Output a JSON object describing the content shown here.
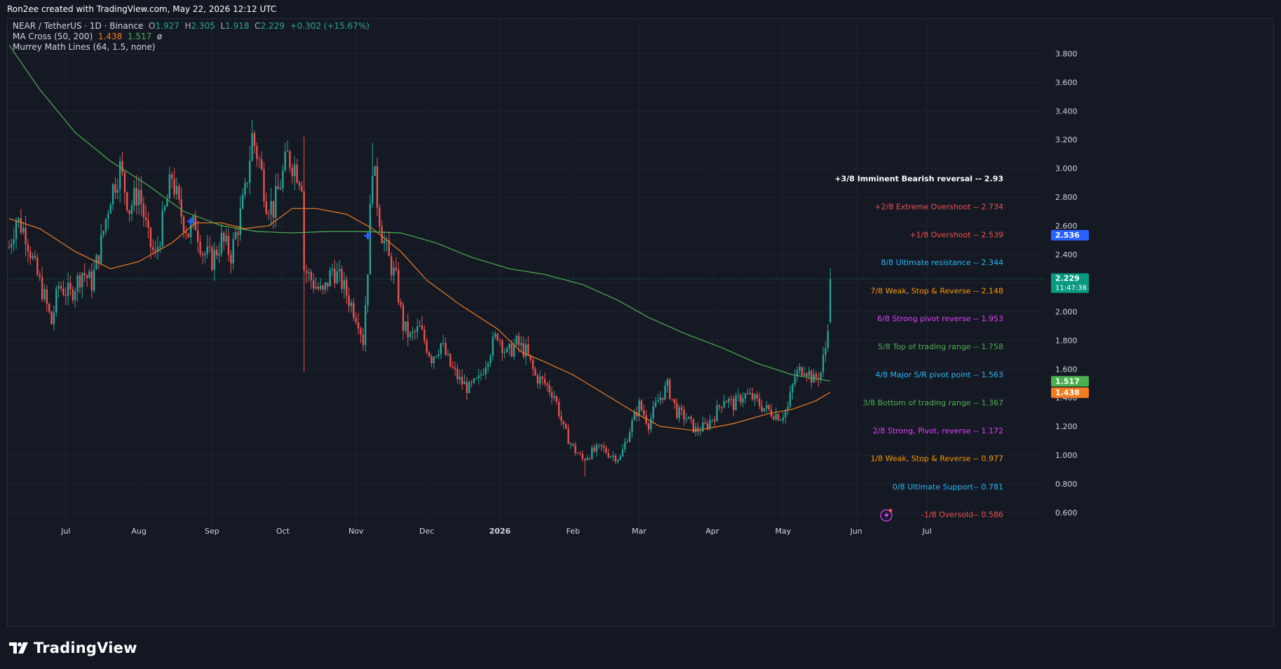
{
  "header": {
    "attribution": "Ron2ee created with TradingView.com, May 22, 2026 12:12 UTC"
  },
  "legend": {
    "symbol": "NEAR / TetherUS · 1D · Binance",
    "o_label": "O",
    "o_value": "1.927",
    "h_label": "H",
    "h_value": "2.305",
    "l_label": "L",
    "l_value": "1.918",
    "c_label": "C",
    "c_value": "2.229",
    "change": "+0.302 (+15.67%)",
    "ma_cross_label": "MA Cross (50, 200)",
    "ma_fast_value": "1.438",
    "ma_slow_value": "1.517",
    "ma_extra": "ø",
    "murrey_label": "Murrey Math Lines (64, 1.5, none)"
  },
  "footer": {
    "brand": "TradingView"
  },
  "colors": {
    "up": "#26a69a",
    "down": "#ef5350",
    "ma_fast": "#f57c1f",
    "ma_slow": "#4caf50",
    "price_tag": "#089981",
    "blue_tag": "#2962ff",
    "background": "#151924"
  },
  "chart_data": {
    "type": "candlestick",
    "title": "NEAR / TetherUS · 1D · Binance",
    "ylim": [
      0.55,
      3.92
    ],
    "y_ticks": [
      3.8,
      3.6,
      3.4,
      3.2,
      3.0,
      2.8,
      2.6,
      2.4,
      2.2,
      2.0,
      1.8,
      1.6,
      1.4,
      1.2,
      1.0,
      0.8,
      0.6
    ],
    "y_tick_labels": [
      "3.800",
      "3.600",
      "3.400",
      "3.200",
      "3.000",
      "2.800",
      "2.600",
      "2.400",
      "2.200",
      "2.000",
      "1.800",
      "1.600",
      "1.400",
      "1.200",
      "1.000",
      "0.800",
      "0.600"
    ],
    "x_ticks": [
      {
        "label": "Jul",
        "date": "2025-07-01"
      },
      {
        "label": "Aug",
        "date": "2025-08-01"
      },
      {
        "label": "Sep",
        "date": "2025-09-01"
      },
      {
        "label": "Oct",
        "date": "2025-10-01"
      },
      {
        "label": "Nov",
        "date": "2025-11-01"
      },
      {
        "label": "Dec",
        "date": "2025-12-01"
      },
      {
        "label": "2026",
        "date": "2026-01-01",
        "bold": true
      },
      {
        "label": "Feb",
        "date": "2026-02-01"
      },
      {
        "label": "Mar",
        "date": "2026-03-01"
      },
      {
        "label": "Apr",
        "date": "2026-04-01"
      },
      {
        "label": "May",
        "date": "2026-05-01"
      },
      {
        "label": "Jun",
        "date": "2026-06-01"
      },
      {
        "label": "Jul",
        "date": "2026-07-01"
      }
    ],
    "x_range": [
      "2025-06-07",
      "2026-07-28"
    ],
    "candles_start": "2025-06-07",
    "close_anchors": [
      [
        "2025-06-07",
        2.45
      ],
      [
        "2025-06-10",
        2.65
      ],
      [
        "2025-06-14",
        2.55
      ],
      [
        "2025-06-18",
        2.3
      ],
      [
        "2025-06-22",
        2.1
      ],
      [
        "2025-06-25",
        1.92
      ],
      [
        "2025-06-28",
        2.18
      ],
      [
        "2025-07-03",
        2.12
      ],
      [
        "2025-07-08",
        2.28
      ],
      [
        "2025-07-12",
        2.2
      ],
      [
        "2025-07-16",
        2.48
      ],
      [
        "2025-07-20",
        2.82
      ],
      [
        "2025-07-24",
        3.0
      ],
      [
        "2025-07-28",
        2.72
      ],
      [
        "2025-08-01",
        2.85
      ],
      [
        "2025-08-05",
        2.5
      ],
      [
        "2025-08-08",
        2.38
      ],
      [
        "2025-08-12",
        2.7
      ],
      [
        "2025-08-15",
        2.95
      ],
      [
        "2025-08-18",
        2.72
      ],
      [
        "2025-08-22",
        2.55
      ],
      [
        "2025-08-25",
        2.62
      ],
      [
        "2025-08-28",
        2.42
      ],
      [
        "2025-09-01",
        2.36
      ],
      [
        "2025-09-05",
        2.5
      ],
      [
        "2025-09-09",
        2.4
      ],
      [
        "2025-09-12",
        2.6
      ],
      [
        "2025-09-15",
        2.82
      ],
      [
        "2025-09-18",
        3.22
      ],
      [
        "2025-09-21",
        3.05
      ],
      [
        "2025-09-24",
        2.78
      ],
      [
        "2025-09-27",
        2.72
      ],
      [
        "2025-09-30",
        2.9
      ],
      [
        "2025-10-03",
        3.08
      ],
      [
        "2025-10-06",
        3.02
      ],
      [
        "2025-10-09",
        2.92
      ],
      [
        "2025-10-10",
        2.3
      ],
      [
        "2025-10-14",
        2.2
      ],
      [
        "2025-10-18",
        2.12
      ],
      [
        "2025-10-22",
        2.3
      ],
      [
        "2025-10-26",
        2.2
      ],
      [
        "2025-10-30",
        2.05
      ],
      [
        "2025-11-02",
        1.95
      ],
      [
        "2025-11-04",
        1.8
      ],
      [
        "2025-11-06",
        2.32
      ],
      [
        "2025-11-08",
        3.05
      ],
      [
        "2025-11-10",
        2.78
      ],
      [
        "2025-11-12",
        2.55
      ],
      [
        "2025-11-15",
        2.36
      ],
      [
        "2025-11-18",
        2.22
      ],
      [
        "2025-11-21",
        1.9
      ],
      [
        "2025-11-24",
        1.82
      ],
      [
        "2025-11-28",
        1.88
      ],
      [
        "2025-12-03",
        1.68
      ],
      [
        "2025-12-07",
        1.78
      ],
      [
        "2025-12-11",
        1.62
      ],
      [
        "2025-12-15",
        1.52
      ],
      [
        "2025-12-19",
        1.46
      ],
      [
        "2025-12-23",
        1.52
      ],
      [
        "2025-12-27",
        1.7
      ],
      [
        "2025-12-31",
        1.85
      ],
      [
        "2026-01-04",
        1.7
      ],
      [
        "2026-01-08",
        1.78
      ],
      [
        "2026-01-12",
        1.72
      ],
      [
        "2026-01-16",
        1.55
      ],
      [
        "2026-01-20",
        1.5
      ],
      [
        "2026-01-24",
        1.42
      ],
      [
        "2026-01-28",
        1.18
      ],
      [
        "2026-02-01",
        1.05
      ],
      [
        "2026-02-05",
        0.97
      ],
      [
        "2026-02-09",
        1.02
      ],
      [
        "2026-02-13",
        1.05
      ],
      [
        "2026-02-17",
        1.0
      ],
      [
        "2026-02-21",
        0.98
      ],
      [
        "2026-02-25",
        1.18
      ],
      [
        "2026-03-01",
        1.35
      ],
      [
        "2026-03-05",
        1.22
      ],
      [
        "2026-03-09",
        1.38
      ],
      [
        "2026-03-13",
        1.48
      ],
      [
        "2026-03-17",
        1.3
      ],
      [
        "2026-03-21",
        1.26
      ],
      [
        "2026-03-25",
        1.17
      ],
      [
        "2026-03-29",
        1.2
      ],
      [
        "2026-04-02",
        1.28
      ],
      [
        "2026-04-06",
        1.4
      ],
      [
        "2026-04-10",
        1.35
      ],
      [
        "2026-04-14",
        1.42
      ],
      [
        "2026-04-18",
        1.4
      ],
      [
        "2026-04-22",
        1.34
      ],
      [
        "2026-04-26",
        1.3
      ],
      [
        "2026-04-30",
        1.27
      ],
      [
        "2026-05-03",
        1.33
      ],
      [
        "2026-05-06",
        1.55
      ],
      [
        "2026-05-10",
        1.62
      ],
      [
        "2026-05-14",
        1.52
      ],
      [
        "2026-05-17",
        1.58
      ],
      [
        "2026-05-19",
        1.75
      ],
      [
        "2026-05-20",
        1.93
      ],
      [
        "2026-05-21",
        2.229
      ]
    ],
    "last_candle": {
      "date": "2026-05-21",
      "open": 1.927,
      "high": 2.305,
      "low": 1.918,
      "close": 2.229
    },
    "series": [
      {
        "name": "MA 50",
        "color": "#f57c1f",
        "points": [
          [
            "2025-06-07",
            2.65
          ],
          [
            "2025-06-20",
            2.58
          ],
          [
            "2025-07-05",
            2.42
          ],
          [
            "2025-07-20",
            2.3
          ],
          [
            "2025-08-01",
            2.35
          ],
          [
            "2025-08-15",
            2.48
          ],
          [
            "2025-08-25",
            2.62
          ],
          [
            "2025-09-05",
            2.62
          ],
          [
            "2025-09-15",
            2.58
          ],
          [
            "2025-09-25",
            2.6
          ],
          [
            "2025-10-05",
            2.72
          ],
          [
            "2025-10-15",
            2.72
          ],
          [
            "2025-10-28",
            2.68
          ],
          [
            "2025-11-08",
            2.58
          ],
          [
            "2025-11-20",
            2.42
          ],
          [
            "2025-12-01",
            2.22
          ],
          [
            "2025-12-15",
            2.05
          ],
          [
            "2025-12-31",
            1.88
          ],
          [
            "2026-01-10",
            1.72
          ],
          [
            "2026-01-20",
            1.65
          ],
          [
            "2026-02-01",
            1.56
          ],
          [
            "2026-02-15",
            1.42
          ],
          [
            "2026-03-01",
            1.28
          ],
          [
            "2026-03-10",
            1.2
          ],
          [
            "2026-03-25",
            1.17
          ],
          [
            "2026-04-10",
            1.22
          ],
          [
            "2026-04-25",
            1.29
          ],
          [
            "2026-05-05",
            1.32
          ],
          [
            "2026-05-15",
            1.38
          ],
          [
            "2026-05-21",
            1.438
          ]
        ]
      },
      {
        "name": "MA 200",
        "color": "#4caf50",
        "points": [
          [
            "2025-06-07",
            3.86
          ],
          [
            "2025-06-20",
            3.55
          ],
          [
            "2025-07-05",
            3.25
          ],
          [
            "2025-07-20",
            3.05
          ],
          [
            "2025-08-05",
            2.88
          ],
          [
            "2025-08-20",
            2.7
          ],
          [
            "2025-09-05",
            2.6
          ],
          [
            "2025-09-20",
            2.56
          ],
          [
            "2025-10-05",
            2.55
          ],
          [
            "2025-10-20",
            2.56
          ],
          [
            "2025-11-05",
            2.56
          ],
          [
            "2025-11-20",
            2.55
          ],
          [
            "2025-12-05",
            2.48
          ],
          [
            "2025-12-20",
            2.38
          ],
          [
            "2026-01-05",
            2.3
          ],
          [
            "2026-01-20",
            2.26
          ],
          [
            "2026-02-05",
            2.19
          ],
          [
            "2026-02-20",
            2.08
          ],
          [
            "2026-03-05",
            1.96
          ],
          [
            "2026-03-20",
            1.85
          ],
          [
            "2026-04-05",
            1.75
          ],
          [
            "2026-04-20",
            1.64
          ],
          [
            "2026-05-05",
            1.56
          ],
          [
            "2026-05-21",
            1.517
          ]
        ]
      }
    ],
    "ma_cross_markers": [
      {
        "date": "2025-08-23",
        "value": 2.63
      },
      {
        "date": "2025-11-06",
        "value": 2.53
      }
    ],
    "murrey_levels": [
      {
        "label": "+3/8 Imminent Bearish reversal -- ",
        "value_text": "2.93",
        "value": 2.93,
        "color": "#ffffff",
        "bold": true
      },
      {
        "label": "+2/8 Extreme Overshoot -- ",
        "value_text": "2.734",
        "value": 2.734,
        "color": "#ef5350"
      },
      {
        "label": "+1/8 Overshoot -- ",
        "value_text": "2.539",
        "value": 2.539,
        "color": "#ef5350"
      },
      {
        "label": "8/8 Ultimate resistance -- ",
        "value_text": "2.344",
        "value": 2.344,
        "color": "#29b6f6"
      },
      {
        "label": "7/8 Weak, Stop & Reverse -- ",
        "value_text": "2.148",
        "value": 2.148,
        "color": "#ff9800"
      },
      {
        "label": "6/8 Strong pivot reverse -- ",
        "value_text": "1.953",
        "value": 1.953,
        "color": "#e040fb"
      },
      {
        "label": "5/8 Top of trading range -- ",
        "value_text": "1.758",
        "value": 1.758,
        "color": "#4caf50"
      },
      {
        "label": "4/8 Major S/R pivot point -- ",
        "value_text": "1.563",
        "value": 1.563,
        "color": "#29b6f6"
      },
      {
        "label": "3/8 Bottom of trading range -- ",
        "value_text": "1.367",
        "value": 1.367,
        "color": "#4caf50"
      },
      {
        "label": "2/8 Strong, Pivot, reverse -- ",
        "value_text": "1.172",
        "value": 1.172,
        "color": "#e040fb"
      },
      {
        "label": "1/8 Weak, Stop & Reverse -- ",
        "value_text": "0.977",
        "value": 0.977,
        "color": "#ff9800"
      },
      {
        "label": "0/8 Ultimate Support-- ",
        "value_text": "0.781",
        "value": 0.781,
        "color": "#29b6f6"
      },
      {
        "label": "-1/8 Oversold-- ",
        "value_text": "0.586",
        "value": 0.586,
        "color": "#ef5350"
      }
    ],
    "price_tags": [
      {
        "text": "2.536",
        "value": 2.536,
        "color": "#2962ff"
      },
      {
        "text": "2.229",
        "sub": "11:47:38",
        "value": 2.229,
        "color": "#089981"
      },
      {
        "text": "1.517",
        "value": 1.517,
        "color": "#4caf50"
      },
      {
        "text": "1.438",
        "value": 1.438,
        "color": "#f57c1f"
      }
    ],
    "current_price_line": 2.229
  }
}
